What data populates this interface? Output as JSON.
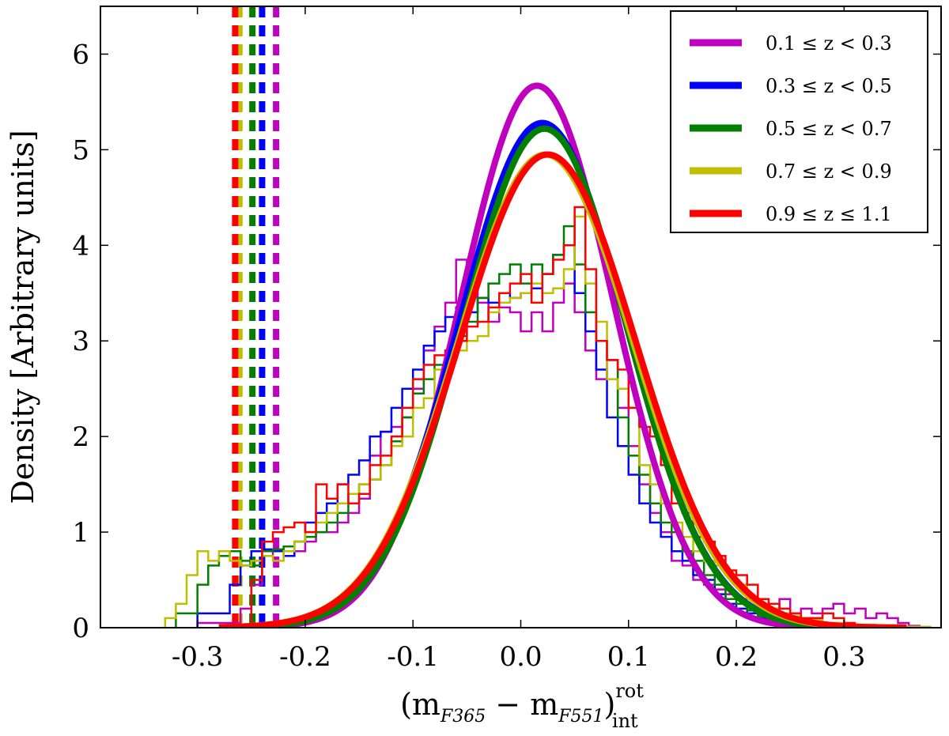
{
  "chart_data": {
    "type": "line",
    "title": "",
    "xlabel": {
      "base": "(m",
      "sub1": "F365",
      "minus": " − m",
      "sub2": "F551",
      "close": ")",
      "sup": "rot",
      "sub3": "int"
    },
    "ylabel": "Density [Arbitrary units]",
    "xlim": [
      -0.39,
      0.39
    ],
    "ylim": [
      0,
      6.5
    ],
    "xticks": [
      -0.3,
      -0.2,
      -0.1,
      0.0,
      0.1,
      0.2,
      0.3
    ],
    "xtick_labels": [
      "-0.3",
      "-0.2",
      "-0.1",
      "0.0",
      "0.1",
      "0.2",
      "0.3"
    ],
    "yticks": [
      0,
      1,
      2,
      3,
      4,
      5,
      6
    ],
    "ytick_labels": [
      "0",
      "1",
      "2",
      "3",
      "4",
      "5",
      "6"
    ],
    "legend_position": "top-right",
    "series": [
      {
        "name": "0.1 ≤ z < 0.3",
        "color": "#bf00bf",
        "cut": -0.227,
        "gaussian": {
          "mu": 0.015,
          "sigma": 0.0705,
          "amp": 5.67
        },
        "hist_edges": [
          -0.3,
          -0.26,
          -0.25,
          -0.24,
          -0.23,
          -0.22,
          -0.21,
          -0.2,
          -0.19,
          -0.18,
          -0.17,
          -0.16,
          -0.15,
          -0.14,
          -0.13,
          -0.12,
          -0.11,
          -0.1,
          -0.09,
          -0.08,
          -0.07,
          -0.06,
          -0.05,
          -0.04,
          -0.03,
          -0.02,
          -0.01,
          0.0,
          0.01,
          0.02,
          0.03,
          0.04,
          0.05,
          0.06,
          0.07,
          0.08,
          0.09,
          0.1,
          0.11,
          0.12,
          0.13,
          0.14,
          0.15,
          0.16,
          0.17,
          0.18,
          0.19,
          0.2,
          0.21,
          0.22,
          0.23,
          0.24,
          0.25,
          0.26,
          0.27,
          0.28,
          0.29,
          0.3,
          0.31,
          0.32,
          0.33,
          0.34,
          0.35,
          0.36,
          0.37
        ],
        "hist_values": [
          0.05,
          0.2,
          0.45,
          0.75,
          0.8,
          0.75,
          0.8,
          0.9,
          1.0,
          1.0,
          1.1,
          1.2,
          1.35,
          1.8,
          2.05,
          2.1,
          2.2,
          2.5,
          2.9,
          3.15,
          3.4,
          3.85,
          3.75,
          3.4,
          3.2,
          3.35,
          3.3,
          3.1,
          3.3,
          3.1,
          3.4,
          3.6,
          3.3,
          2.9,
          2.6,
          2.8,
          2.3,
          1.9,
          1.5,
          1.2,
          1.0,
          0.7,
          0.65,
          0.5,
          0.45,
          0.4,
          0.35,
          0.3,
          0.3,
          0.25,
          0.2,
          0.3,
          0.15,
          0.2,
          0.15,
          0.2,
          0.25,
          0.15,
          0.2,
          0.1,
          0.15,
          0.1,
          0.05,
          0.02
        ]
      },
      {
        "name": "0.3 ≤ z < 0.5",
        "color": "#0000ff",
        "cut": -0.24,
        "gaussian": {
          "mu": 0.02,
          "sigma": 0.077,
          "amp": 5.28
        },
        "hist_edges": [
          -0.3,
          -0.27,
          -0.26,
          -0.25,
          -0.24,
          -0.23,
          -0.22,
          -0.21,
          -0.2,
          -0.19,
          -0.18,
          -0.17,
          -0.16,
          -0.15,
          -0.14,
          -0.13,
          -0.12,
          -0.11,
          -0.1,
          -0.09,
          -0.08,
          -0.07,
          -0.06,
          -0.05,
          -0.04,
          -0.03,
          -0.02,
          -0.01,
          0.0,
          0.01,
          0.02,
          0.03,
          0.04,
          0.05,
          0.06,
          0.07,
          0.08,
          0.09,
          0.1,
          0.11,
          0.12,
          0.13,
          0.14,
          0.15,
          0.16,
          0.17,
          0.18,
          0.19,
          0.2,
          0.21,
          0.22,
          0.23,
          0.24,
          0.25,
          0.26,
          0.27
        ],
        "hist_values": [
          0.15,
          0.45,
          0.65,
          0.8,
          0.82,
          0.8,
          0.75,
          0.9,
          1.1,
          1.2,
          1.3,
          1.5,
          1.6,
          1.75,
          2.0,
          2.05,
          2.3,
          2.5,
          2.7,
          2.95,
          3.1,
          3.25,
          3.35,
          3.3,
          3.45,
          3.4,
          3.5,
          3.45,
          3.5,
          3.55,
          3.7,
          3.9,
          4.0,
          3.5,
          3.1,
          2.7,
          2.2,
          1.9,
          1.6,
          1.3,
          1.1,
          0.95,
          0.8,
          0.7,
          0.55,
          0.5,
          0.35,
          0.25,
          0.2,
          0.15,
          0.1,
          0.05,
          0.05,
          0.03,
          0.02
        ]
      },
      {
        "name": "0.5 ≤ z < 0.7",
        "color": "#007f00",
        "cut": -0.249,
        "gaussian": {
          "mu": 0.022,
          "sigma": 0.076,
          "amp": 5.22
        },
        "hist_edges": [
          -0.32,
          -0.3,
          -0.29,
          -0.28,
          -0.27,
          -0.26,
          -0.25,
          -0.24,
          -0.23,
          -0.22,
          -0.21,
          -0.2,
          -0.19,
          -0.18,
          -0.17,
          -0.16,
          -0.15,
          -0.14,
          -0.13,
          -0.12,
          -0.11,
          -0.1,
          -0.09,
          -0.08,
          -0.07,
          -0.06,
          -0.05,
          -0.04,
          -0.03,
          -0.02,
          -0.01,
          0.0,
          0.01,
          0.02,
          0.03,
          0.04,
          0.05,
          0.06,
          0.07,
          0.08,
          0.09,
          0.1,
          0.11,
          0.12,
          0.13,
          0.14,
          0.15,
          0.16,
          0.17,
          0.18,
          0.19,
          0.2,
          0.21,
          0.22,
          0.23,
          0.24,
          0.25,
          0.26,
          0.27,
          0.28
        ],
        "hist_values": [
          0.15,
          0.45,
          0.65,
          0.75,
          0.8,
          0.7,
          0.65,
          0.8,
          0.82,
          0.85,
          0.9,
          0.95,
          1.0,
          1.1,
          1.2,
          1.4,
          1.5,
          1.55,
          1.7,
          1.95,
          2.2,
          2.45,
          2.6,
          2.75,
          2.9,
          3.05,
          3.2,
          3.45,
          3.6,
          3.7,
          3.8,
          3.6,
          3.8,
          3.7,
          3.9,
          4.2,
          3.8,
          3.3,
          3.0,
          2.8,
          2.2,
          1.8,
          1.6,
          1.3,
          1.1,
          1.0,
          0.8,
          0.7,
          0.55,
          0.45,
          0.3,
          0.25,
          0.18,
          0.12,
          0.08,
          0.05,
          0.03,
          0.02,
          0.01
        ]
      },
      {
        "name": "0.7 ≤ z < 0.9",
        "color": "#bfbf00",
        "cut": -0.261,
        "gaussian": {
          "mu": 0.023,
          "sigma": 0.081,
          "amp": 4.95
        },
        "hist_edges": [
          -0.33,
          -0.32,
          -0.31,
          -0.3,
          -0.29,
          -0.28,
          -0.27,
          -0.26,
          -0.25,
          -0.24,
          -0.23,
          -0.22,
          -0.21,
          -0.2,
          -0.19,
          -0.18,
          -0.17,
          -0.16,
          -0.15,
          -0.14,
          -0.13,
          -0.12,
          -0.11,
          -0.1,
          -0.09,
          -0.08,
          -0.07,
          -0.06,
          -0.05,
          -0.04,
          -0.03,
          -0.02,
          -0.01,
          0.0,
          0.01,
          0.02,
          0.03,
          0.04,
          0.05,
          0.06,
          0.07,
          0.08,
          0.09,
          0.1,
          0.11,
          0.12,
          0.13,
          0.14,
          0.15,
          0.16,
          0.17,
          0.18,
          0.19,
          0.2,
          0.21,
          0.22,
          0.23,
          0.24,
          0.25,
          0.26,
          0.27,
          0.28,
          0.29,
          0.3,
          0.31,
          0.32,
          0.33,
          0.34,
          0.35,
          0.36,
          0.37,
          0.38
        ],
        "hist_values": [
          0.1,
          0.25,
          0.55,
          0.8,
          0.7,
          0.8,
          0.7,
          0.65,
          0.7,
          0.75,
          0.7,
          0.8,
          0.9,
          1.0,
          1.1,
          1.2,
          1.3,
          1.4,
          1.5,
          1.55,
          1.7,
          1.9,
          2.0,
          2.3,
          2.4,
          2.7,
          2.8,
          2.9,
          3.0,
          3.05,
          3.3,
          3.4,
          3.45,
          3.5,
          3.6,
          3.5,
          3.55,
          3.75,
          4.3,
          3.6,
          3.2,
          2.6,
          2.5,
          2.3,
          1.7,
          1.5,
          1.3,
          1.1,
          0.95,
          0.8,
          0.7,
          0.65,
          0.55,
          0.45,
          0.3,
          0.25,
          0.2,
          0.15,
          0.12,
          0.1,
          0.08,
          0.05,
          0.05,
          0.04,
          0.03,
          0.03,
          0.02,
          0.02,
          0.01,
          0.01,
          0.01
        ]
      },
      {
        "name": "0.9 ≤ z ≤ 1.1",
        "color": "#ff0000",
        "cut": -0.265,
        "gaussian": {
          "mu": 0.025,
          "sigma": 0.0815,
          "amp": 4.95
        },
        "hist_edges": [
          -0.25,
          -0.24,
          -0.23,
          -0.22,
          -0.21,
          -0.2,
          -0.19,
          -0.18,
          -0.17,
          -0.16,
          -0.15,
          -0.14,
          -0.13,
          -0.12,
          -0.11,
          -0.1,
          -0.09,
          -0.08,
          -0.07,
          -0.06,
          -0.05,
          -0.04,
          -0.03,
          -0.02,
          -0.01,
          0.0,
          0.01,
          0.02,
          0.03,
          0.04,
          0.05,
          0.06,
          0.07,
          0.08,
          0.09,
          0.1,
          0.11,
          0.12,
          0.13,
          0.14,
          0.15,
          0.16,
          0.17,
          0.18,
          0.19,
          0.2,
          0.21,
          0.22,
          0.23,
          0.24,
          0.25,
          0.26,
          0.27,
          0.28,
          0.29,
          0.3,
          0.31,
          0.32
        ],
        "hist_values": [
          0.5,
          0.9,
          1.0,
          1.05,
          1.1,
          1.0,
          1.5,
          1.35,
          1.5,
          1.3,
          1.4,
          1.7,
          1.8,
          2.0,
          2.3,
          2.6,
          2.75,
          2.85,
          2.9,
          3.0,
          3.15,
          3.2,
          3.35,
          3.5,
          3.6,
          3.7,
          3.4,
          3.7,
          3.85,
          4.0,
          4.4,
          3.75,
          3.0,
          2.8,
          2.7,
          2.3,
          2.1,
          2.0,
          1.7,
          1.3,
          1.2,
          0.95,
          0.9,
          0.75,
          0.6,
          0.55,
          0.45,
          0.3,
          0.25,
          0.2,
          0.15,
          0.1,
          0.1,
          0.15,
          0.1,
          0.05,
          0.02
        ]
      }
    ]
  }
}
